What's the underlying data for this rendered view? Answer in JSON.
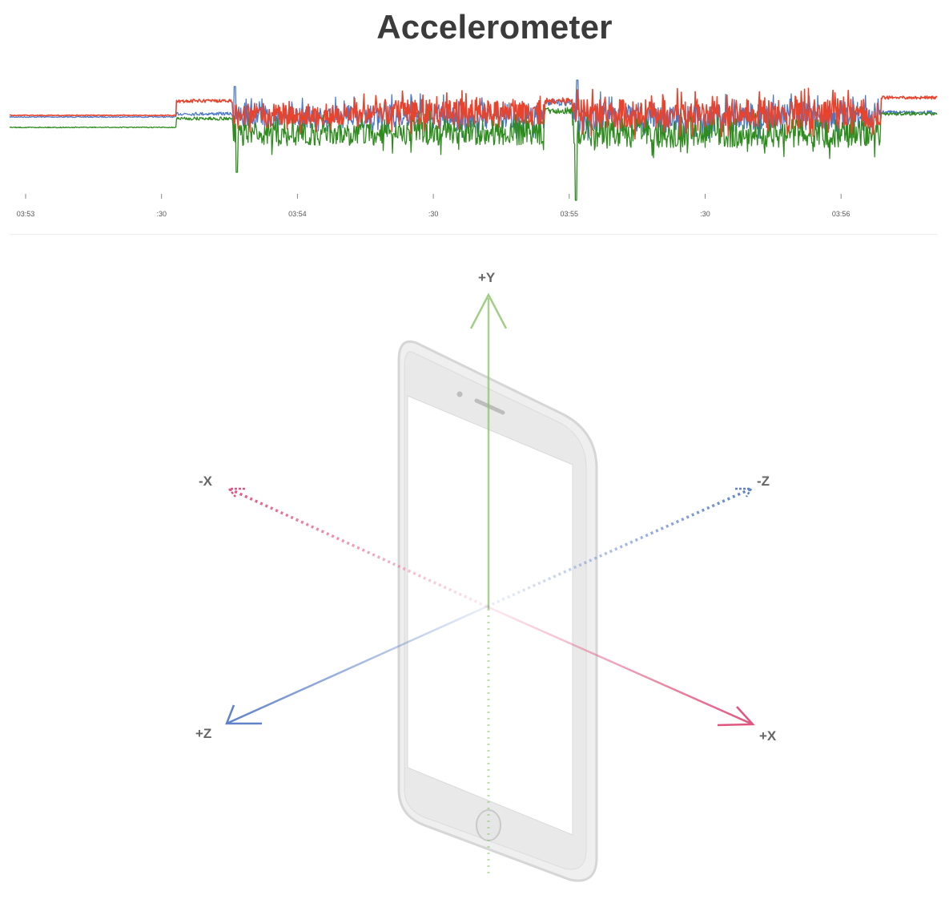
{
  "title": "Accelerometer",
  "chart_data": {
    "type": "line",
    "title": "Accelerometer",
    "xlabel": "",
    "ylabel": "",
    "x_ticks": [
      "03:53",
      ":30",
      "03:54",
      ":30",
      "03:55",
      ":30",
      "03:56"
    ],
    "grid": false,
    "legend": "none",
    "series": [
      {
        "color": "#4a78c8"
      },
      {
        "color": "#2e8b1e"
      },
      {
        "color": "#e8432d"
      }
    ]
  },
  "diagram": {
    "axes": {
      "plus_y": "+Y",
      "minus_x": "-X",
      "minus_z": "-Z",
      "plus_z": "+Z",
      "plus_x": "+X"
    },
    "colors": {
      "x_axis": "#e0557f",
      "y_axis": "#8cc26a",
      "z_axis": "#5f82c8",
      "device": "#d9d9d9"
    }
  }
}
